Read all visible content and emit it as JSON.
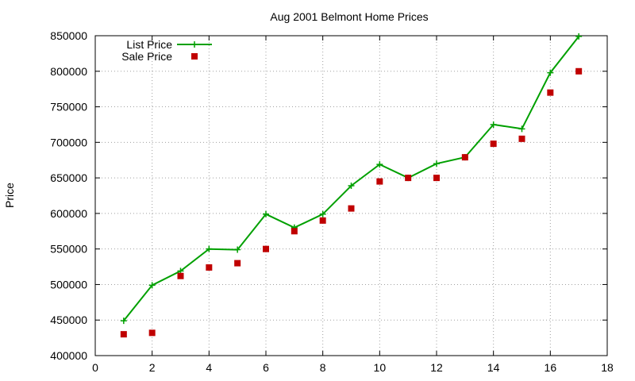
{
  "chart_data": {
    "type": "line",
    "title": "Aug 2001 Belmont Home Prices",
    "xlabel": "",
    "ylabel": "Price",
    "xlim": [
      0,
      18
    ],
    "ylim": [
      400000,
      850000
    ],
    "xticks": [
      0,
      2,
      4,
      6,
      8,
      10,
      12,
      14,
      16,
      18
    ],
    "yticks": [
      400000,
      450000,
      500000,
      550000,
      600000,
      650000,
      700000,
      750000,
      800000,
      850000
    ],
    "grid": true,
    "legend_position": "top-left",
    "series": [
      {
        "name": "List Price",
        "style": "line-with-plus-markers",
        "color": "#00a000",
        "x": [
          1,
          2,
          3,
          4,
          5,
          6,
          7,
          8,
          9,
          10,
          11,
          12,
          13,
          14,
          15,
          16,
          17
        ],
        "y": [
          449000,
          499000,
          519000,
          550000,
          549000,
          599000,
          580000,
          599000,
          639000,
          669000,
          650000,
          670000,
          679000,
          725000,
          719000,
          798000,
          849000
        ]
      },
      {
        "name": "Sale Price",
        "style": "square-points",
        "color": "#c00000",
        "x": [
          1,
          2,
          3,
          4,
          5,
          6,
          7,
          8,
          9,
          10,
          11,
          12,
          13,
          14,
          15,
          16,
          17
        ],
        "y": [
          430000,
          432000,
          512000,
          524000,
          530000,
          550000,
          575000,
          590000,
          607000,
          645000,
          650000,
          650000,
          679000,
          698000,
          705000,
          770000,
          800000
        ]
      }
    ]
  }
}
